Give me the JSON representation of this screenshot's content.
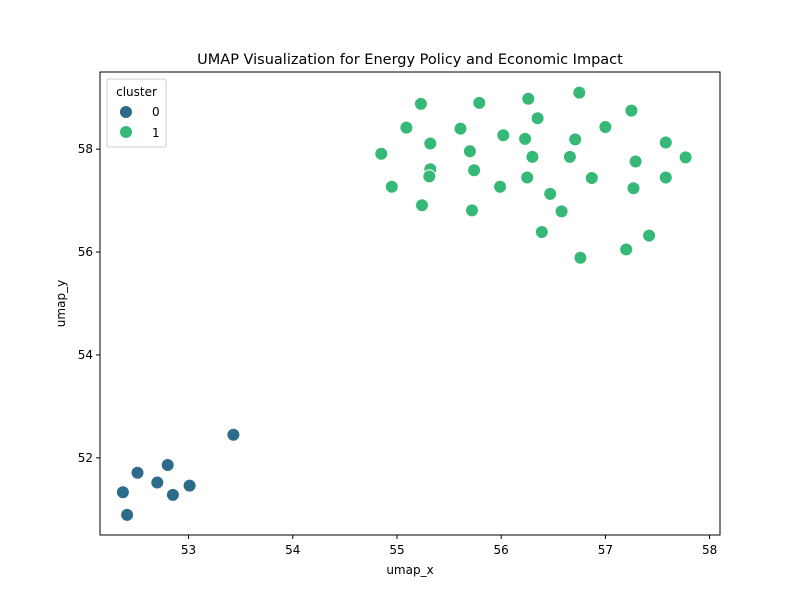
{
  "chart_data": {
    "type": "scatter",
    "title": "UMAP Visualization for Energy Policy and Economic Impact",
    "xlabel": "umap_x",
    "ylabel": "umap_y",
    "xlim": [
      52.15,
      58.1
    ],
    "ylim": [
      50.5,
      59.5
    ],
    "xticks": [
      53,
      54,
      55,
      56,
      57,
      58
    ],
    "yticks": [
      52,
      54,
      56,
      58
    ],
    "grid": false,
    "legend": {
      "title": "cluster",
      "placement": "top-left",
      "entries": [
        {
          "label": "0",
          "color": "#2d6b8a"
        },
        {
          "label": "1",
          "color": "#36b877"
        }
      ]
    },
    "series": [
      {
        "name": "0",
        "color": "#2d6b8a",
        "x": [
          53.43,
          52.51,
          52.8,
          52.7,
          52.37,
          52.85,
          53.01,
          52.41
        ],
        "y": [
          52.45,
          51.71,
          51.86,
          51.52,
          51.33,
          51.28,
          51.46,
          50.89
        ]
      },
      {
        "name": "1",
        "color": "#36b877",
        "x": [
          55.23,
          55.79,
          56.26,
          56.75,
          57.25,
          55.09,
          55.61,
          56.02,
          56.35,
          57.0,
          55.32,
          56.23,
          56.71,
          57.58,
          54.85,
          55.7,
          56.3,
          56.66,
          57.29,
          57.77,
          55.32,
          55.74,
          55.31,
          56.25,
          56.87,
          57.58,
          54.95,
          55.99,
          56.47,
          57.27,
          55.24,
          55.72,
          56.58,
          56.39,
          57.42,
          57.2,
          56.76
        ],
        "y": [
          58.88,
          58.9,
          58.98,
          59.1,
          58.75,
          58.42,
          58.4,
          58.27,
          58.6,
          58.43,
          58.11,
          58.2,
          58.19,
          58.13,
          57.91,
          57.96,
          57.85,
          57.85,
          57.76,
          57.84,
          57.61,
          57.59,
          57.47,
          57.45,
          57.44,
          57.45,
          57.27,
          57.27,
          57.13,
          57.24,
          56.91,
          56.81,
          56.79,
          56.39,
          56.32,
          56.05,
          55.89
        ]
      }
    ]
  }
}
